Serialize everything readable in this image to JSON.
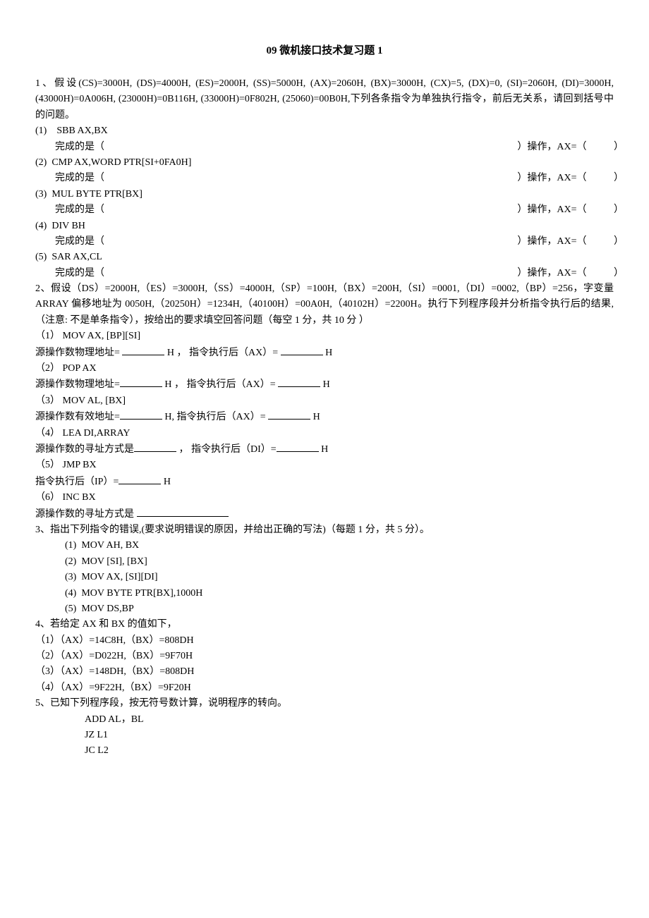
{
  "title": "09 微机接口技术复习题 1",
  "q1": {
    "intro": "1、假设(CS)=3000H, (DS)=4000H, (ES)=2000H, (SS)=5000H, (AX)=2060H, (BX)=3000H, (CX)=5, (DX)=0, (SI)=2060H, (DI)=3000H, (43000H)=0A006H, (23000H)=0B116H, (33000H)=0F802H, (25060)=00B0H,下列各条指令为单独执行指令，前后无关系，请回到括号中的问题。",
    "items": [
      {
        "num": "(1)",
        "instr": "SBB   AX,BX"
      },
      {
        "num": "(2)",
        "instr": "CMP AX,WORD PTR[SI+0FA0H]"
      },
      {
        "num": "(3)",
        "instr": "MUL   BYTE PTR[BX]"
      },
      {
        "num": "(4)",
        "instr": "DIV   BH"
      },
      {
        "num": "(5)",
        "instr": "SAR   AX,CL"
      }
    ],
    "complete_label": "完成的是（",
    "op_label": "）操作，AX=（",
    "close": "）"
  },
  "q2": {
    "intro": "2、假设（DS）=2000H,（ES）=3000H,（SS）=4000H,（SP）=100H,（BX）=200H,（SI）=0001,（DI）=0002,（BP）=256，字变量 ARRAY 偏移地址为 0050H,（20250H）=1234H,（40100H）=00A0H,（40102H）=2200H。执行下列程序段并分析指令执行后的结果,（注意: 不是单条指令），按给出的要求填空回答问题（每空 1 分，共 10 分 ）",
    "items": [
      {
        "num": "（1）",
        "instr": "MOV  AX, [BP][SI]",
        "left": "源操作数物理地址= ",
        "after": "H  ，   指令执行后（AX）= ",
        "tail": "H"
      },
      {
        "num": "（2）",
        "instr": "POP AX",
        "left": "源操作数物理地址=",
        "after": "H  ，   指令执行后（AX）=  ",
        "tail": "H"
      },
      {
        "num": "（3）",
        "instr": "MOV  AL, [BX]",
        "left": "源操作数有效地址=",
        "after": "H,    指令执行后（AX）= ",
        "tail": "H"
      },
      {
        "num": "（4）",
        "instr": "LEA DI,ARRAY",
        "left": "源操作数的寻址方式是",
        "after": "  ，  指令执行后（DI）=",
        "tail": "H"
      },
      {
        "num": "（5）",
        "instr": "JMP   BX",
        "left": "指令执行后（IP）=",
        "after": "",
        "tail": "H"
      },
      {
        "num": "（6）",
        "instr": "INC  BX",
        "left": " 源操作数的寻址方式是 ",
        "after": "",
        "tail": ""
      }
    ]
  },
  "q3": {
    "intro": "3、指出下列指令的错误,(要求说明错误的原因，并给出正确的写法)（每题 1 分，共 5 分）。",
    "items": [
      {
        "num": "(1)",
        "instr": "MOV  AH, BX"
      },
      {
        "num": "(2)",
        "instr": "MOV  [SI], [BX]"
      },
      {
        "num": "(3)",
        "instr": "MOV  AX,  [SI][DI]"
      },
      {
        "num": "(4)",
        "instr": "MOV  BYTE PTR[BX],1000H"
      },
      {
        "num": "(5)",
        "instr": "MOV   DS,BP"
      }
    ]
  },
  "q4": {
    "intro": "4、若给定 AX 和 BX 的值如下，",
    "items": [
      "（1）（AX）=14C8H,（BX）=808DH",
      "（2）（AX）=D022H,（BX）=9F70H",
      "（3）（AX）=148DH,（BX）=808DH",
      "（4）（AX）=9F22H,（BX）=9F20H"
    ]
  },
  "q5": {
    "intro": "5、已知下列程序段，按无符号数计算，说明程序的转向。",
    "items": [
      "ADD  AL，BL",
      "JZ   L1",
      "JC   L2"
    ]
  }
}
